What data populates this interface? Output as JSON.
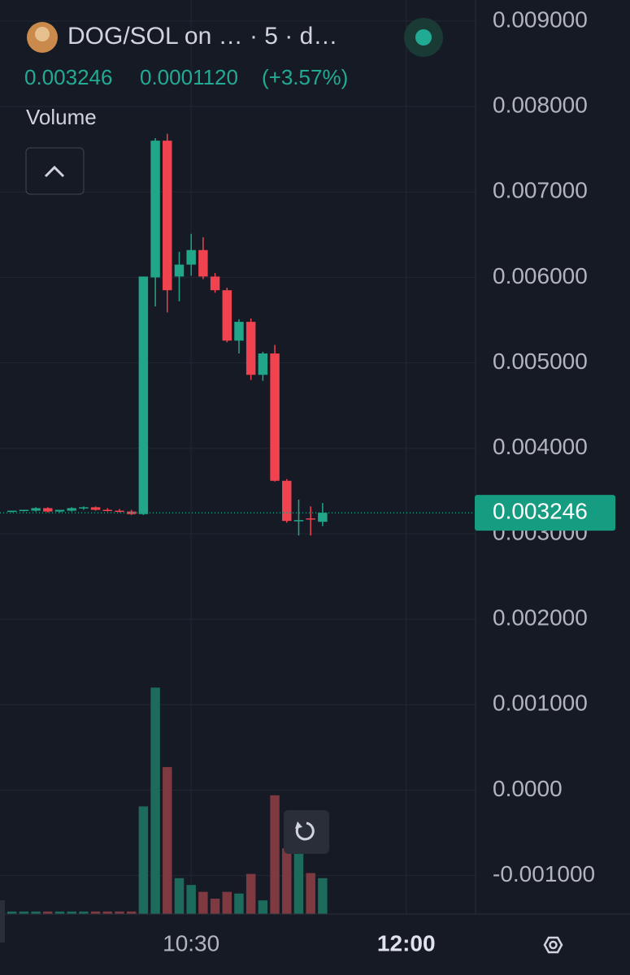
{
  "header": {
    "title": "DOG/SOL on … · 5 · d…",
    "price": "0.003246",
    "change": "0.0001120",
    "change_pct": "(+3.57%)"
  },
  "chart_data": {
    "type": "candlestick",
    "x": [
      555,
      560,
      565,
      570,
      575,
      580,
      585,
      590,
      595,
      600,
      605,
      610,
      615,
      620,
      625,
      630,
      635,
      640,
      645,
      650,
      655,
      660,
      665,
      670,
      675,
      680,
      685
    ],
    "xlim": [
      550,
      749
    ],
    "xticks": [
      {
        "value": 630,
        "label": "10:30"
      },
      {
        "value": 720,
        "label": "12:00"
      }
    ],
    "ylim": [
      -0.00145,
      0.00917
    ],
    "yticks": [
      {
        "value": 0.009,
        "label": "0.009000"
      },
      {
        "value": 0.008,
        "label": "0.008000"
      },
      {
        "value": 0.007,
        "label": "0.007000"
      },
      {
        "value": 0.006,
        "label": "0.006000"
      },
      {
        "value": 0.005,
        "label": "0.005000"
      },
      {
        "value": 0.004,
        "label": "0.004000"
      },
      {
        "value": 0.003,
        "label": "0.003000"
      },
      {
        "value": 0.002,
        "label": "0.002000"
      },
      {
        "value": 0.001,
        "label": "0.001000"
      },
      {
        "value": 0,
        "label": "0.0000"
      },
      {
        "value": -0.001,
        "label": "-0.001000"
      }
    ],
    "grid": true,
    "up_color": "#22a68a",
    "down_color": "#f0424f",
    "open": [
      0.00326,
      0.00327,
      0.00327,
      0.0033,
      0.00326,
      0.00327,
      0.0033,
      0.00331,
      0.00328,
      0.00327,
      0.00326,
      0.00323,
      0.006,
      0.0076,
      0.00601,
      0.00615,
      0.00632,
      0.00601,
      0.00585,
      0.00526,
      0.00548,
      0.00486,
      0.00511,
      0.00362,
      0.00315,
      0.00318,
      0.00314
    ],
    "high": [
      0.00327,
      0.00328,
      0.00331,
      0.00331,
      0.00328,
      0.00331,
      0.00332,
      0.00332,
      0.0033,
      0.00329,
      0.00328,
      0.00601,
      0.00763,
      0.00768,
      0.0063,
      0.00651,
      0.00647,
      0.00605,
      0.00588,
      0.00551,
      0.00552,
      0.00513,
      0.00521,
      0.00364,
      0.0034,
      0.00332,
      0.00336
    ],
    "low": [
      0.00325,
      0.00326,
      0.00326,
      0.00325,
      0.00325,
      0.00326,
      0.00328,
      0.00327,
      0.00326,
      0.00325,
      0.00322,
      0.00322,
      0.00566,
      0.00559,
      0.00572,
      0.00602,
      0.00598,
      0.00582,
      0.00524,
      0.00511,
      0.0048,
      0.00479,
      0.00361,
      0.00313,
      0.00298,
      0.00298,
      0.00309
    ],
    "close": [
      0.00327,
      0.00328,
      0.0033,
      0.00326,
      0.00328,
      0.0033,
      0.00331,
      0.00328,
      0.00327,
      0.00326,
      0.00323,
      0.00601,
      0.0076,
      0.00585,
      0.00615,
      0.00632,
      0.00601,
      0.00585,
      0.00526,
      0.00548,
      0.00486,
      0.00511,
      0.00362,
      0.00315,
      0.00316,
      0.00317,
      0.003246
    ],
    "volume": {
      "name": "Volume",
      "up_color": "#1d6b5a",
      "down_color": "#7e3941",
      "values": [
        -0.00142,
        -0.00142,
        -0.00142,
        -0.00142,
        -0.00142,
        -0.00142,
        -0.00142,
        -0.00142,
        -0.00142,
        -0.00142,
        -0.00142,
        -0.00019,
        0.0012,
        0.00027,
        -0.00103,
        -0.00111,
        -0.00119,
        -0.00127,
        -0.00119,
        -0.00121,
        -0.00098,
        -0.00129,
        -6e-05,
        -0.00068,
        -0.00073,
        -0.00097,
        -0.00103
      ]
    },
    "last_price": 0.003246,
    "last_price_color": "#169c80"
  }
}
